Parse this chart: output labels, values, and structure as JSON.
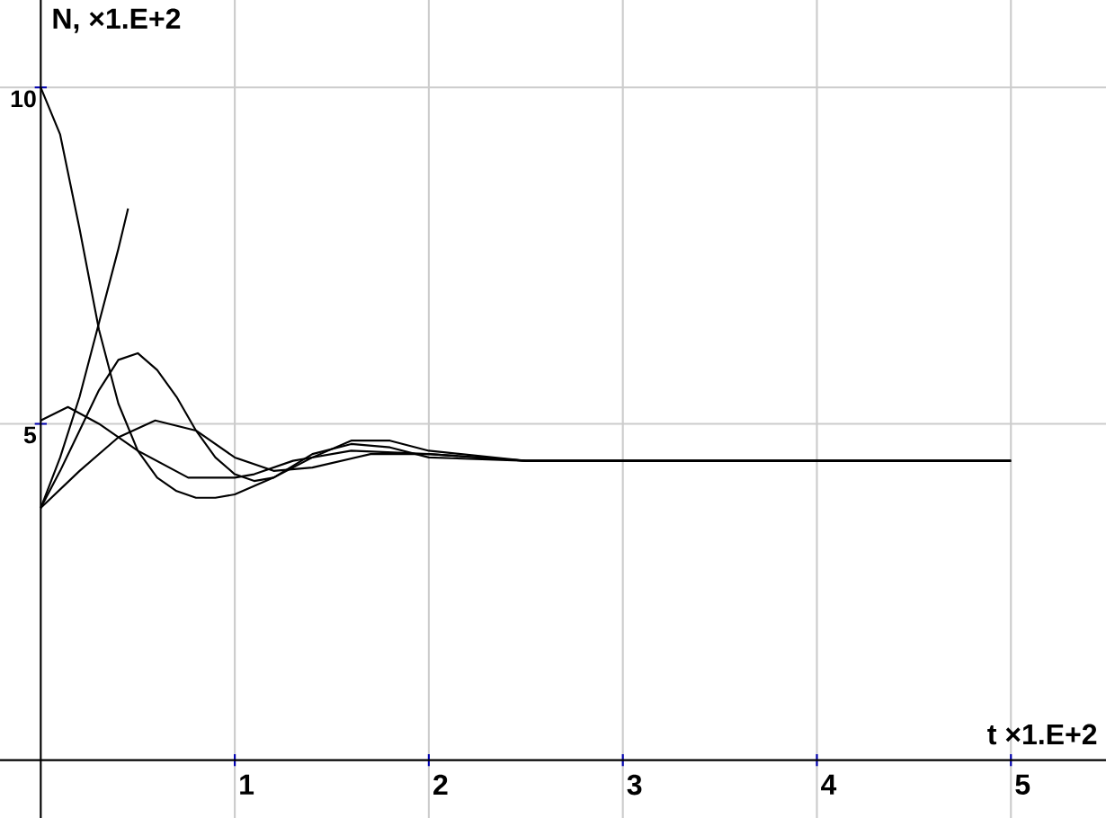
{
  "chart_data": {
    "type": "line",
    "xlabel": "t ×1.E+2",
    "ylabel": "N, ×1.E+2",
    "xlim": [
      -0.21,
      5.49
    ],
    "ylim": [
      -0.86,
      11.3
    ],
    "xticks": [
      1,
      2,
      3,
      4,
      5
    ],
    "yticks": [
      5,
      10
    ],
    "grid": true,
    "series": [
      {
        "color": "#000000",
        "x": [
          0,
          0.1,
          0.2,
          0.3,
          0.4,
          0.5,
          0.6,
          0.7,
          0.8,
          0.9,
          1.0,
          1.2,
          1.4,
          1.6,
          1.8,
          2.0,
          2.5,
          3,
          4,
          5
        ],
        "values": [
          10,
          9.3,
          7.9,
          6.4,
          5.3,
          4.6,
          4.2,
          4.0,
          3.9,
          3.9,
          3.95,
          4.2,
          4.55,
          4.7,
          4.65,
          4.5,
          4.45,
          4.45,
          4.45,
          4.45
        ]
      },
      {
        "color": "#000000",
        "x": [
          0,
          0.1,
          0.2,
          0.3,
          0.4,
          0.45
        ],
        "values": [
          3.75,
          4.5,
          5.4,
          6.5,
          7.6,
          8.2
        ]
      },
      {
        "color": "#000000",
        "x": [
          0,
          0.1,
          0.2,
          0.3,
          0.4,
          0.5,
          0.6,
          0.7,
          0.8,
          0.9,
          1.0,
          1.1,
          1.2,
          1.4,
          1.6,
          1.8,
          2.0,
          2.5,
          3,
          5
        ],
        "values": [
          3.75,
          4.3,
          4.9,
          5.5,
          5.95,
          6.05,
          5.8,
          5.4,
          4.9,
          4.5,
          4.25,
          4.15,
          4.2,
          4.5,
          4.75,
          4.75,
          4.6,
          4.45,
          4.45,
          4.45
        ]
      },
      {
        "color": "#000000",
        "x": [
          0,
          0.14,
          0.3,
          0.5,
          0.76,
          1.0,
          1.1,
          1.3,
          1.6,
          2.0,
          2.5,
          5
        ],
        "values": [
          5.05,
          5.25,
          5.0,
          4.6,
          4.2,
          4.2,
          4.25,
          4.45,
          4.6,
          4.55,
          4.45,
          4.45
        ]
      },
      {
        "color": "#000000",
        "x": [
          0,
          0.2,
          0.4,
          0.59,
          0.8,
          1.0,
          1.2,
          1.4,
          1.7,
          2.0,
          2.5,
          5
        ],
        "values": [
          3.75,
          4.3,
          4.8,
          5.05,
          4.9,
          4.5,
          4.3,
          4.35,
          4.55,
          4.55,
          4.45,
          4.45
        ]
      }
    ]
  }
}
